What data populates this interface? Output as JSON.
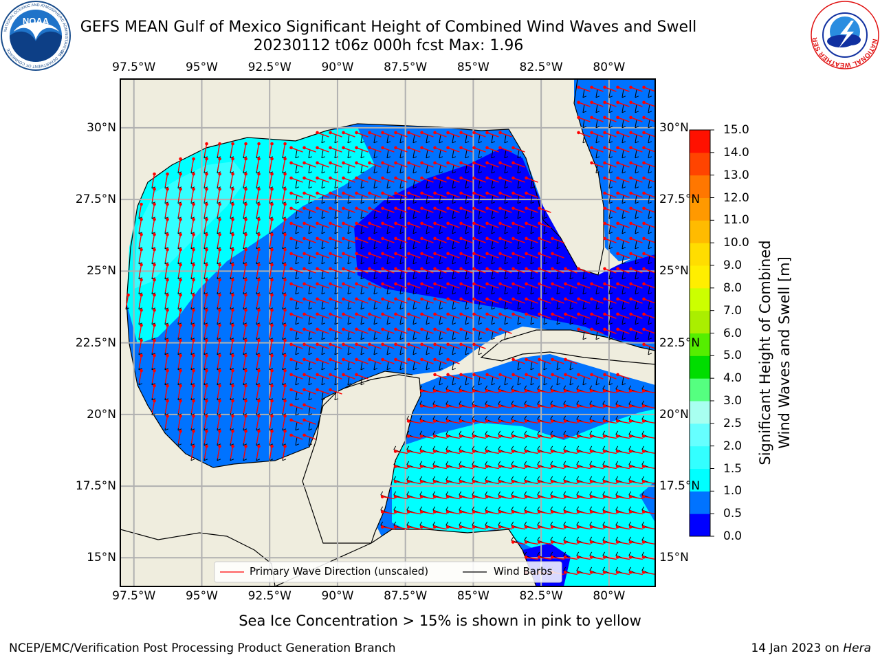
{
  "header": {
    "title_line1": "GEFS MEAN Gulf of Mexico Significant Height of Combined Wind Waves and Swell",
    "title_line2": "20230112 t06z 000h fcst   Max: 1.96"
  },
  "logos": {
    "noaa": {
      "text": "NOAA",
      "ring_text": "NATIONAL OCEANIC AND ATMOSPHERIC ADMINISTRATION",
      "dept_text": "U.S. DEPARTMENT OF COMMERCE"
    },
    "nws": {
      "ring_text": "NATIONAL WEATHER SERVICE"
    }
  },
  "map": {
    "lon_ticks": [
      "97.5°W",
      "95°W",
      "92.5°W",
      "90°W",
      "87.5°W",
      "85°W",
      "82.5°W",
      "80°W"
    ],
    "lat_ticks": [
      "30°N",
      "27.5°N",
      "25°N",
      "22.5°N",
      "20°N",
      "17.5°N",
      "15°N"
    ],
    "lon_values": [
      -97.5,
      -95,
      -92.5,
      -90,
      -87.5,
      -85,
      -82.5,
      -80
    ],
    "lat_values": [
      30,
      27.5,
      25,
      22.5,
      20,
      17.5,
      15
    ],
    "lon_range": [
      -98,
      -78.3
    ],
    "lat_range": [
      14,
      31.7
    ],
    "land_color": "#efedde",
    "grid": true,
    "legend": {
      "wave_label": "Primary Wave Direction (unscaled)",
      "barb_label": "Wind Barbs",
      "wave_color": "#ff0000",
      "barb_color": "#000000",
      "placement": "bottom-center"
    }
  },
  "colorbar": {
    "label_line1": "Significant Height of Combined",
    "label_line2": "Wind Waves and Swell [m]",
    "tick_labels": [
      "0.0",
      "0.5",
      "1.0",
      "1.5",
      "2.0",
      "2.5",
      "3.0",
      "4.0",
      "5.0",
      "6.0",
      "7.0",
      "8.0",
      "9.0",
      "10.0",
      "11.0",
      "12.0",
      "13.0",
      "14.0",
      "15.0"
    ],
    "colors": [
      "#0000ff",
      "#0073ff",
      "#00ffff",
      "#33ffff",
      "#66ffff",
      "#a8fff0",
      "#55ff80",
      "#00dd00",
      "#55ee00",
      "#aaee00",
      "#ccff00",
      "#ffee00",
      "#ffdd00",
      "#ffbb00",
      "#ff9900",
      "#ff7700",
      "#ff4400",
      "#ff1100"
    ]
  },
  "notes": {
    "ice": "Sea Ice Concentration > 15% is shown in pink to yellow"
  },
  "footer": {
    "left": "NCEP/EMC/Verification Post Processing Product Generation Branch",
    "date": "14 Jan 2023 on ",
    "host": "Hera"
  }
}
